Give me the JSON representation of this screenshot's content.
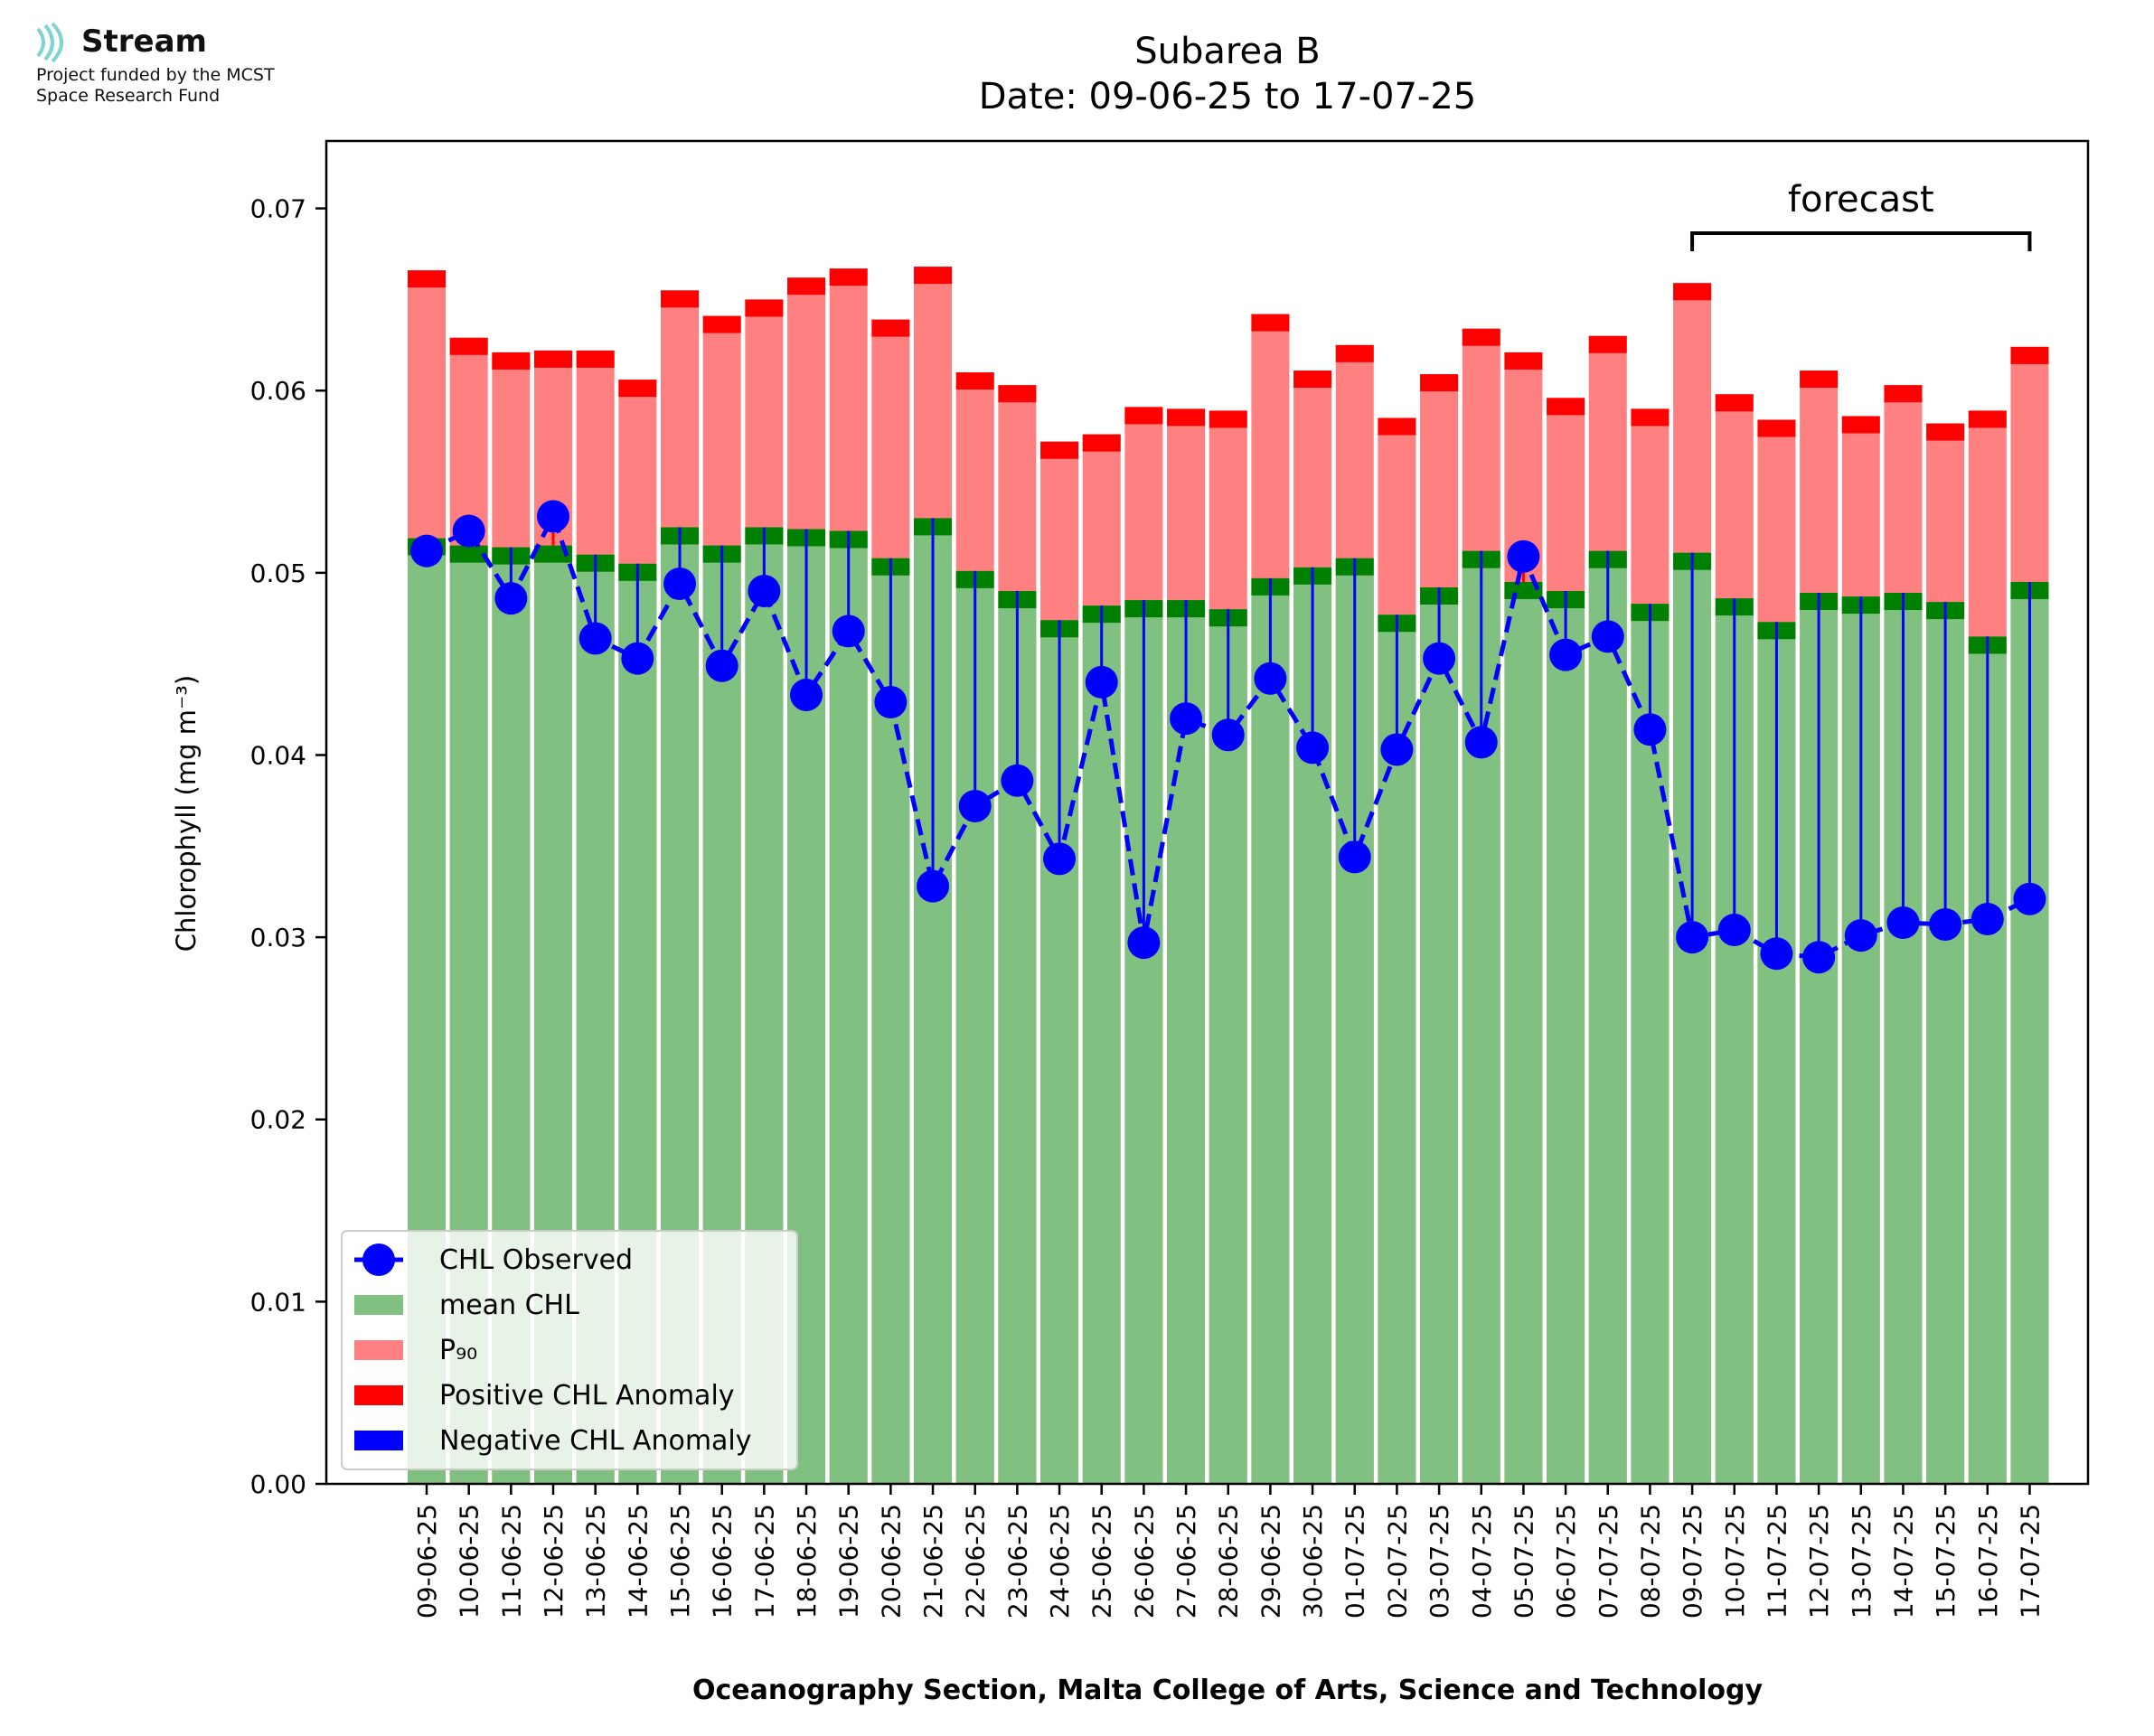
{
  "logo": {
    "name": "Stream",
    "line1": "Project funded by the MCST",
    "line2": "Space Research Fund",
    "icon": "stream-waves-icon",
    "color": "#7fd3d3"
  },
  "chart_data": {
    "type": "bar",
    "title": "Subarea B",
    "subtitle": "Date: 09-06-25 to 17-07-25",
    "xlabel": "Oceanography Section, Malta College of Arts, Science and Technology",
    "ylabel": "Chlorophyll (mg m⁻³)",
    "ylim": [
      0,
      0.0737
    ],
    "yticks": [
      "0.00",
      "0.01",
      "0.02",
      "0.03",
      "0.04",
      "0.05",
      "0.06",
      "0.07"
    ],
    "ytick_values": [
      0,
      0.01,
      0.02,
      0.03,
      0.04,
      0.05,
      0.06,
      0.07
    ],
    "categories": [
      "09-06-25",
      "10-06-25",
      "11-06-25",
      "12-06-25",
      "13-06-25",
      "14-06-25",
      "15-06-25",
      "16-06-25",
      "17-06-25",
      "18-06-25",
      "19-06-25",
      "20-06-25",
      "21-06-25",
      "22-06-25",
      "23-06-25",
      "24-06-25",
      "25-06-25",
      "26-06-25",
      "27-06-25",
      "28-06-25",
      "29-06-25",
      "30-06-25",
      "01-07-25",
      "02-07-25",
      "03-07-25",
      "04-07-25",
      "05-07-25",
      "06-07-25",
      "07-07-25",
      "08-07-25",
      "09-07-25",
      "10-07-25",
      "11-07-25",
      "12-07-25",
      "13-07-25",
      "14-07-25",
      "15-07-25",
      "16-07-25",
      "17-07-25"
    ],
    "series": [
      {
        "name": "CHL Observed",
        "color": "#0000ff",
        "style": "dashed-line-with-markers",
        "values": [
          0.0512,
          0.0523,
          0.0486,
          0.0531,
          0.0464,
          0.0453,
          0.0494,
          0.0449,
          0.049,
          0.0433,
          0.0468,
          0.0429,
          0.0328,
          0.0372,
          0.0386,
          0.0343,
          0.044,
          0.0297,
          0.042,
          0.0411,
          0.0442,
          0.0404,
          0.0344,
          0.0403,
          0.0453,
          0.0407,
          0.0509,
          0.0455,
          0.0465,
          0.0414,
          0.03,
          0.0304,
          0.0291,
          0.0289,
          0.0301,
          0.0308,
          0.0307,
          0.031,
          0.0321
        ]
      },
      {
        "name": "mean CHL",
        "color": "#80c080",
        "values": [
          0.0519,
          0.0515,
          0.0514,
          0.0515,
          0.051,
          0.0505,
          0.0525,
          0.0515,
          0.0525,
          0.0524,
          0.0523,
          0.0508,
          0.053,
          0.0501,
          0.049,
          0.0474,
          0.0482,
          0.0485,
          0.0485,
          0.048,
          0.0497,
          0.0503,
          0.0508,
          0.0477,
          0.0492,
          0.0512,
          0.0495,
          0.049,
          0.0512,
          0.0483,
          0.0511,
          0.0486,
          0.0473,
          0.0489,
          0.0487,
          0.0489,
          0.0484,
          0.0465,
          0.0495
        ]
      },
      {
        "name": "P₉₀",
        "color": "#ff8080",
        "values": [
          0.0666,
          0.0629,
          0.0621,
          0.0622,
          0.0622,
          0.0606,
          0.0655,
          0.0641,
          0.065,
          0.0662,
          0.0667,
          0.0639,
          0.0668,
          0.061,
          0.0603,
          0.0572,
          0.0576,
          0.0591,
          0.059,
          0.0589,
          0.0642,
          0.0611,
          0.0625,
          0.0585,
          0.0609,
          0.0634,
          0.0621,
          0.0596,
          0.063,
          0.059,
          0.0659,
          0.0598,
          0.0584,
          0.0611,
          0.0586,
          0.0603,
          0.0582,
          0.0589,
          0.0624
        ]
      },
      {
        "name": "Positive CHL Anomaly",
        "color": "#ff0000"
      },
      {
        "name": "Negative CHL Anomaly",
        "color": "#0000ff"
      }
    ],
    "annotation": {
      "text": "forecast",
      "from": "09-07-25",
      "to": "17-07-25"
    },
    "legend": {
      "placement": "bottom-left",
      "entries": [
        "CHL Observed",
        "mean CHL",
        "P₉₀",
        "Positive CHL Anomaly",
        "Negative CHL Anomaly"
      ]
    },
    "grid": false
  }
}
